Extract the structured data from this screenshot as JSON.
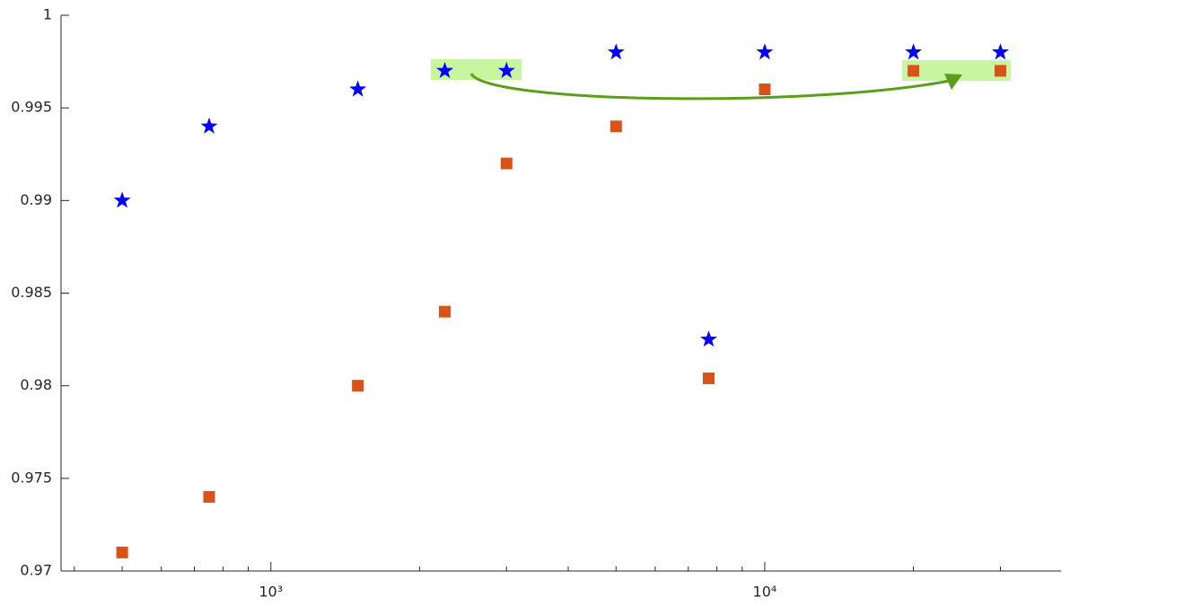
{
  "chart_data": {
    "type": "scatter",
    "xscale": "log",
    "xlim": [
      376,
      39800
    ],
    "ylim": [
      0.97,
      1
    ],
    "xticks": [
      {
        "value": 1000,
        "label": "10³"
      },
      {
        "value": 10000,
        "label": "10⁴"
      }
    ],
    "xminorticks": [
      400,
      500,
      600,
      700,
      800,
      900,
      2000,
      3000,
      4000,
      5000,
      6000,
      7000,
      8000,
      9000,
      20000,
      30000
    ],
    "yticks": [
      0.97,
      0.975,
      0.98,
      0.985,
      0.99,
      0.995,
      1
    ],
    "grid": false,
    "series": [
      {
        "marker": "star",
        "color": "#0000ff",
        "x": [
          500,
          750,
          1500,
          2250,
          3000,
          5000,
          7700,
          10000,
          20000,
          30000
        ],
        "values": [
          0.99,
          0.994,
          0.996,
          0.997,
          0.997,
          0.998,
          0.9825,
          0.998,
          0.998,
          0.998
        ]
      },
      {
        "marker": "square",
        "color": "#d95319",
        "x": [
          500,
          750,
          1500,
          2250,
          3000,
          5000,
          7700,
          10000,
          20000,
          30000
        ],
        "values": [
          0.971,
          0.974,
          0.98,
          0.984,
          0.992,
          0.994,
          0.9804,
          0.996,
          0.997,
          0.997
        ]
      }
    ]
  }
}
